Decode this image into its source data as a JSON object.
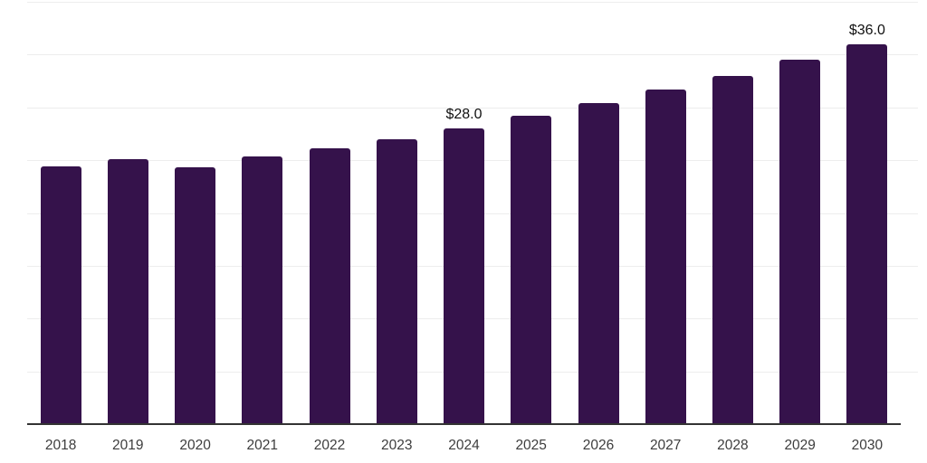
{
  "chart_data": {
    "type": "bar",
    "title": "",
    "xlabel": "",
    "ylabel": "",
    "categories": [
      "2018",
      "2019",
      "2020",
      "2021",
      "2022",
      "2023",
      "2024",
      "2025",
      "2026",
      "2027",
      "2028",
      "2029",
      "2030"
    ],
    "values": [
      24.4,
      25.1,
      24.3,
      25.4,
      26.1,
      27.0,
      28.0,
      29.2,
      30.4,
      31.7,
      33.0,
      34.5,
      36.0
    ],
    "bar_labels": [
      "",
      "",
      "",
      "",
      "",
      "",
      "$28.0",
      "",
      "",
      "",
      "",
      "",
      "$36.0"
    ],
    "ylim": [
      0,
      40
    ],
    "grid_step": 5,
    "grid": true,
    "legend_position": "none",
    "colors": {
      "bar": "#35124B",
      "gridline": "#EDEDED",
      "axis_line": "#333333",
      "tick_label": "#3D3D3D",
      "value_label": "#111111",
      "background": "#FFFFFF"
    }
  }
}
